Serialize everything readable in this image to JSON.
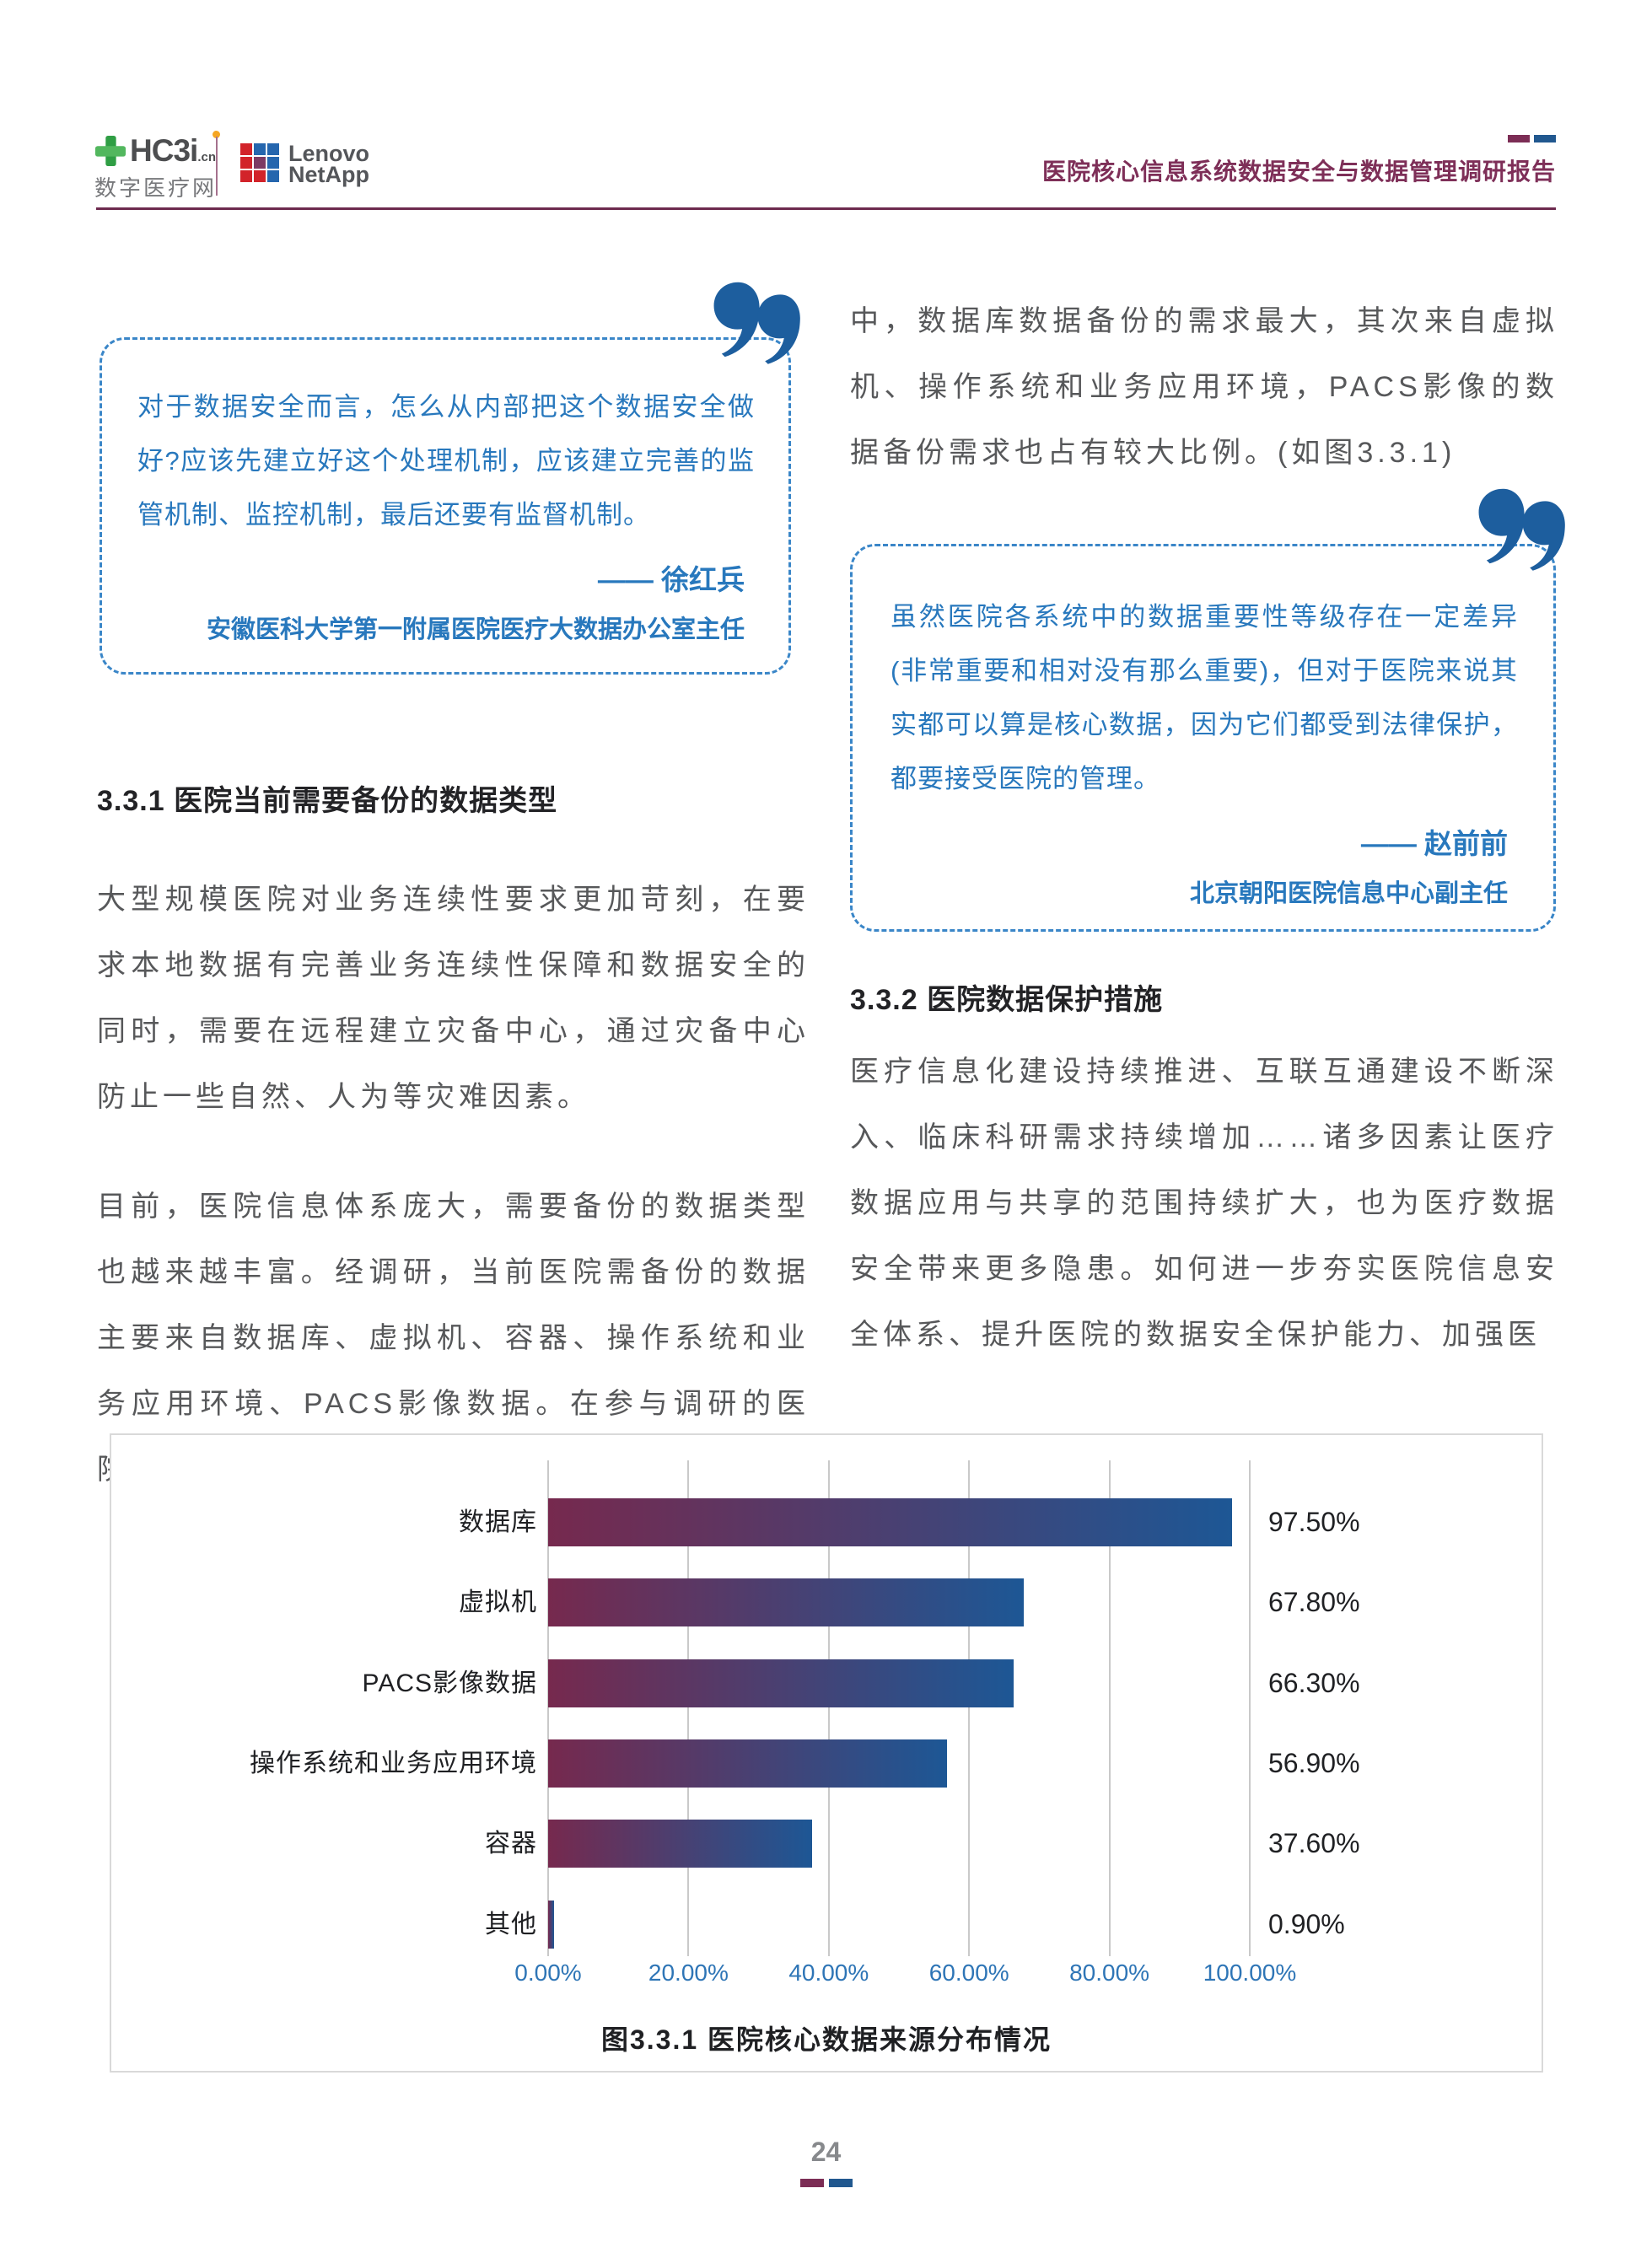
{
  "header": {
    "brand": {
      "name_main": "HC3i",
      "name_suffix": ".cn",
      "subtitle": "数字医疗网"
    },
    "partner": {
      "line1": "Lenovo",
      "line2": "NetApp"
    },
    "report_title": "医院核心信息系统数据安全与数据管理调研报告"
  },
  "quotes": [
    {
      "text": "对于数据安全而言，怎么从内部把这个数据安全做好?应该先建立好这个处理机制，应该建立完善的监管机制、监控机制，最后还要有监督机制。",
      "author": "—— 徐红兵",
      "author_title": "安徽医科大学第一附属医院医疗大数据办公室主任"
    },
    {
      "text": "虽然医院各系统中的数据重要性等级存在一定差异(非常重要和相对没有那么重要)，但对于医院来说其实都可以算是核心数据，因为它们都受到法律保护，都要接受医院的管理。",
      "author": "—— 赵前前",
      "author_title": "北京朝阳医院信息中心副主任"
    }
  ],
  "main": {
    "right_lead": "中，数据库数据备份的需求最大，其次来自虚拟机、操作系统和业务应用环境，PACS影像的数据备份需求也占有较大比例。(如图3.3.1)"
  },
  "sections": [
    {
      "heading": "3.3.1 医院当前需要备份的数据类型",
      "paragraphs": [
        "大型规模医院对业务连续性要求更加苛刻，在要求本地数据有完善业务连续性保障和数据安全的同时，需要在远程建立灾备中心，通过灾备中心防止一些自然、人为等灾难因素。",
        "目前，医院信息体系庞大，需要备份的数据类型也越来越丰富。经调研，当前医院需备份的数据主要来自数据库、虚拟机、容器、操作系统和业务应用环境、PACS影像数据。在参与调研的医院"
      ]
    },
    {
      "heading": "3.3.2 医院数据保护措施",
      "paragraphs": [
        "医疗信息化建设持续推进、互联互通建设不断深入、临床科研需求持续增加……诸多因素让医疗数据应用与共享的范围持续扩大，也为医疗数据安全带来更多隐患。如何进一步夯实医院信息安全体系、提升医院的数据安全保护能力、加强医"
      ]
    }
  ],
  "chart_data": {
    "type": "bar",
    "orientation": "horizontal",
    "title": "图3.3.1 医院核心数据来源分布情况",
    "categories": [
      "数据库",
      "虚拟机",
      "PACS影像数据",
      "操作系统和业务应用环境",
      "容器",
      "其他"
    ],
    "values": [
      97.5,
      67.8,
      66.3,
      56.9,
      37.6,
      0.9
    ],
    "value_labels": [
      "97.50%",
      "67.80%",
      "66.30%",
      "56.90%",
      "37.60%",
      "0.90%"
    ],
    "x_ticks": [
      "0.00%",
      "20.00%",
      "40.00%",
      "60.00%",
      "80.00%",
      "100.00%"
    ],
    "xlim": [
      0,
      100
    ],
    "grid": true,
    "legend": false,
    "bar_gradient": [
      "#76294e",
      "#1d5795"
    ],
    "tick_color": "#2e75b6"
  },
  "footer": {
    "page_number": "24"
  },
  "colors": {
    "accent_maroon": "#7c2d55",
    "accent_blue": "#21588f",
    "quote_blue": "#2878bd",
    "quote_icon_blue": "#1d5e9e",
    "body_gray": "#57585a",
    "axis_blue": "#2e75b6",
    "logo_green": "#3aa74a",
    "logo_orange": "#f5a623",
    "netapp_red": "#d2232a",
    "netapp_blue": "#2566ae",
    "netapp_purple": "#7d3a64"
  }
}
